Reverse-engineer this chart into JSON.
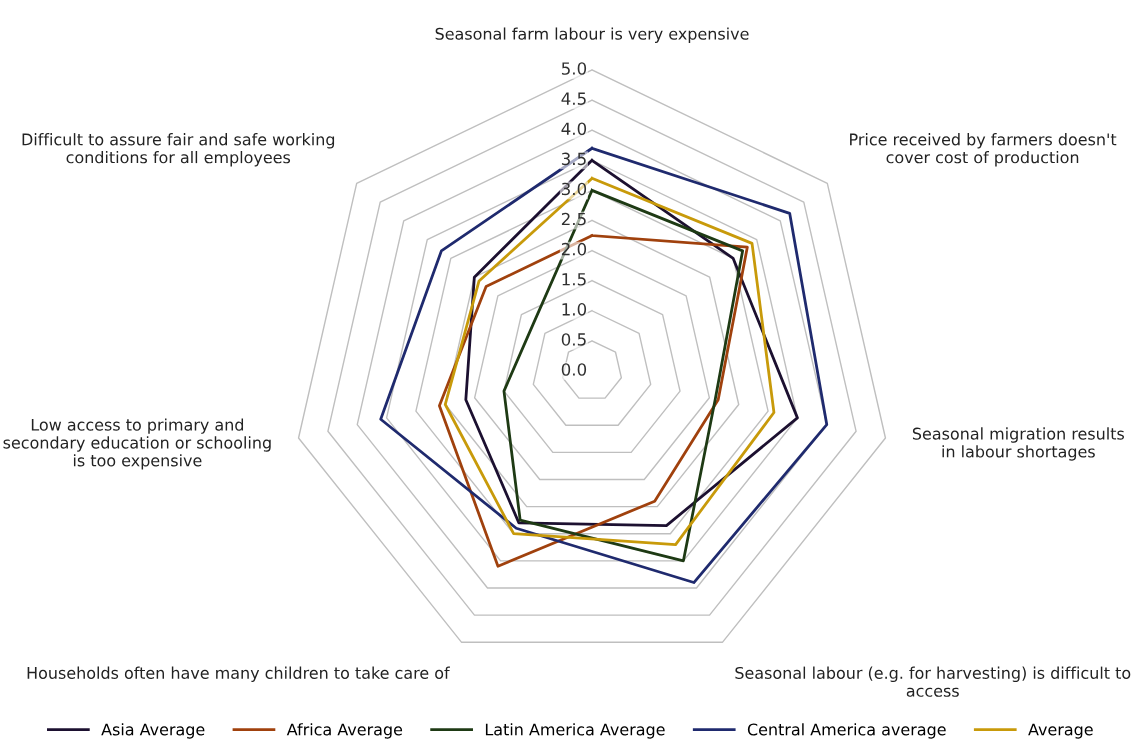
{
  "chart_data": {
    "type": "radar",
    "categories": [
      "Seasonal farm labour is very expensive",
      "Price received by farmers doesn't cover cost of production",
      "Seasonal migration results in labour shortages",
      "Seasonal labour (e.g. for harvesting) is difficult to access",
      "Households often have many children to take care of",
      "Low access to primary and secondary education or schooling is too expensive",
      "Difficult to assure fair and safe working conditions for all employees"
    ],
    "series": [
      {
        "name": "Asia Average",
        "color": "#1c1030",
        "values": [
          3.5,
          3.0,
          3.5,
          2.85,
          2.8,
          2.15,
          2.5
        ]
      },
      {
        "name": "Africa Average",
        "color": "#a0410d",
        "values": [
          2.25,
          3.3,
          2.15,
          2.4,
          3.6,
          2.6,
          2.25
        ]
      },
      {
        "name": "Latin America Average",
        "color": "#1e3a14",
        "values": [
          3.0,
          3.2,
          2.1,
          3.5,
          2.75,
          1.5,
          1.25
        ]
      },
      {
        "name": "Central America average",
        "color": "#1f2a6e",
        "values": [
          3.7,
          4.2,
          4.0,
          3.9,
          2.9,
          3.6,
          3.2
        ]
      },
      {
        "name": "Average",
        "color": "#c89a0a",
        "values": [
          3.2,
          3.4,
          3.1,
          3.2,
          3.0,
          2.5,
          2.4
        ]
      }
    ],
    "ylim": [
      0,
      5
    ],
    "yticks": [
      {
        "value": 0,
        "label": "0.0"
      },
      {
        "value": 0.5,
        "label": "0.5"
      },
      {
        "value": 1,
        "label": "1.0"
      },
      {
        "value": 1.5,
        "label": "1.5"
      },
      {
        "value": 2,
        "label": "2.0"
      },
      {
        "value": 2.5,
        "label": "2.5"
      },
      {
        "value": 3,
        "label": "3.0"
      },
      {
        "value": 3.5,
        "label": "3.5"
      },
      {
        "value": 4,
        "label": "4.0"
      },
      {
        "value": 4.5,
        "label": "4.5"
      },
      {
        "value": 5,
        "label": "5.0"
      }
    ],
    "grid": true,
    "legend": "bottom",
    "marker": "none",
    "line_style": "solid"
  }
}
